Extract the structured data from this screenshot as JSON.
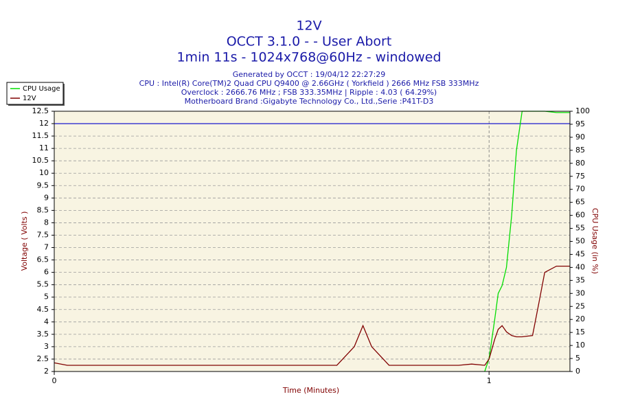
{
  "chart_data": {
    "type": "line",
    "title": "12V",
    "title_lines": [
      "OCCT 3.1.0 -  - User Abort",
      "1min 11s - 1024x768@60Hz - windowed"
    ],
    "subtitle_lines": [
      "Generated by OCCT : 19/04/12 22:27:29",
      "CPU : Intel(R) Core(TM)2 Quad CPU Q9400 @ 2.66GHz ( Yorkfield ) 2666 MHz FSB 333MHz",
      "Overclock : 2666.76 MHz ; FSB 333.35MHz | Ripple : 4.03 ( 64.29%)",
      "Motherboard Brand :Gigabyte Technology Co., Ltd.,Serie :P41T-D3"
    ],
    "x_label": "Time (Minutes)",
    "y_label": "Voltage ( Volts )",
    "y2_label": "CPU Usage (in %)",
    "x": [
      0,
      0.03,
      0.65,
      0.69,
      0.71,
      0.73,
      0.77,
      0.93,
      0.96,
      0.99,
      1.0,
      1.013,
      1.021,
      1.03,
      1.04,
      1.052,
      1.063,
      1.076,
      1.1,
      1.115,
      1.128,
      1.155,
      1.186
    ],
    "series": [
      {
        "name": "CPU Usage",
        "color": "#00dd00",
        "axis": "y2",
        "values": [
          null,
          null,
          null,
          null,
          null,
          null,
          null,
          null,
          null,
          0,
          5,
          20,
          30,
          33,
          40,
          60,
          85,
          100,
          100,
          100,
          100,
          99.5,
          99.5
        ]
      },
      {
        "name": "12V",
        "color": "#800000",
        "values": [
          2.35,
          2.25,
          2.25,
          3.0,
          3.85,
          3.0,
          2.25,
          2.25,
          2.3,
          2.25,
          2.5,
          3.3,
          3.7,
          3.85,
          3.6,
          3.45,
          3.4,
          3.4,
          3.45,
          4.8,
          6.0,
          6.25,
          6.25
        ]
      }
    ],
    "reference_line": {
      "value": 12,
      "color": "#0000cc"
    },
    "xlim": [
      0,
      1.186
    ],
    "xticks": [
      0,
      1
    ],
    "ylim": [
      2,
      12.5
    ],
    "yticks": [
      2,
      2.5,
      3,
      3.5,
      4,
      4.5,
      5,
      5.5,
      6,
      6.5,
      7,
      7.5,
      8,
      8.5,
      9,
      9.5,
      10,
      10.5,
      11,
      11.5,
      12,
      12.5
    ],
    "y2lim": [
      0,
      100
    ],
    "y2ticks": [
      0,
      5,
      10,
      15,
      20,
      25,
      30,
      35,
      40,
      45,
      50,
      55,
      60,
      65,
      70,
      75,
      80,
      85,
      90,
      95,
      100
    ],
    "grid": true,
    "legend": "top-left"
  }
}
